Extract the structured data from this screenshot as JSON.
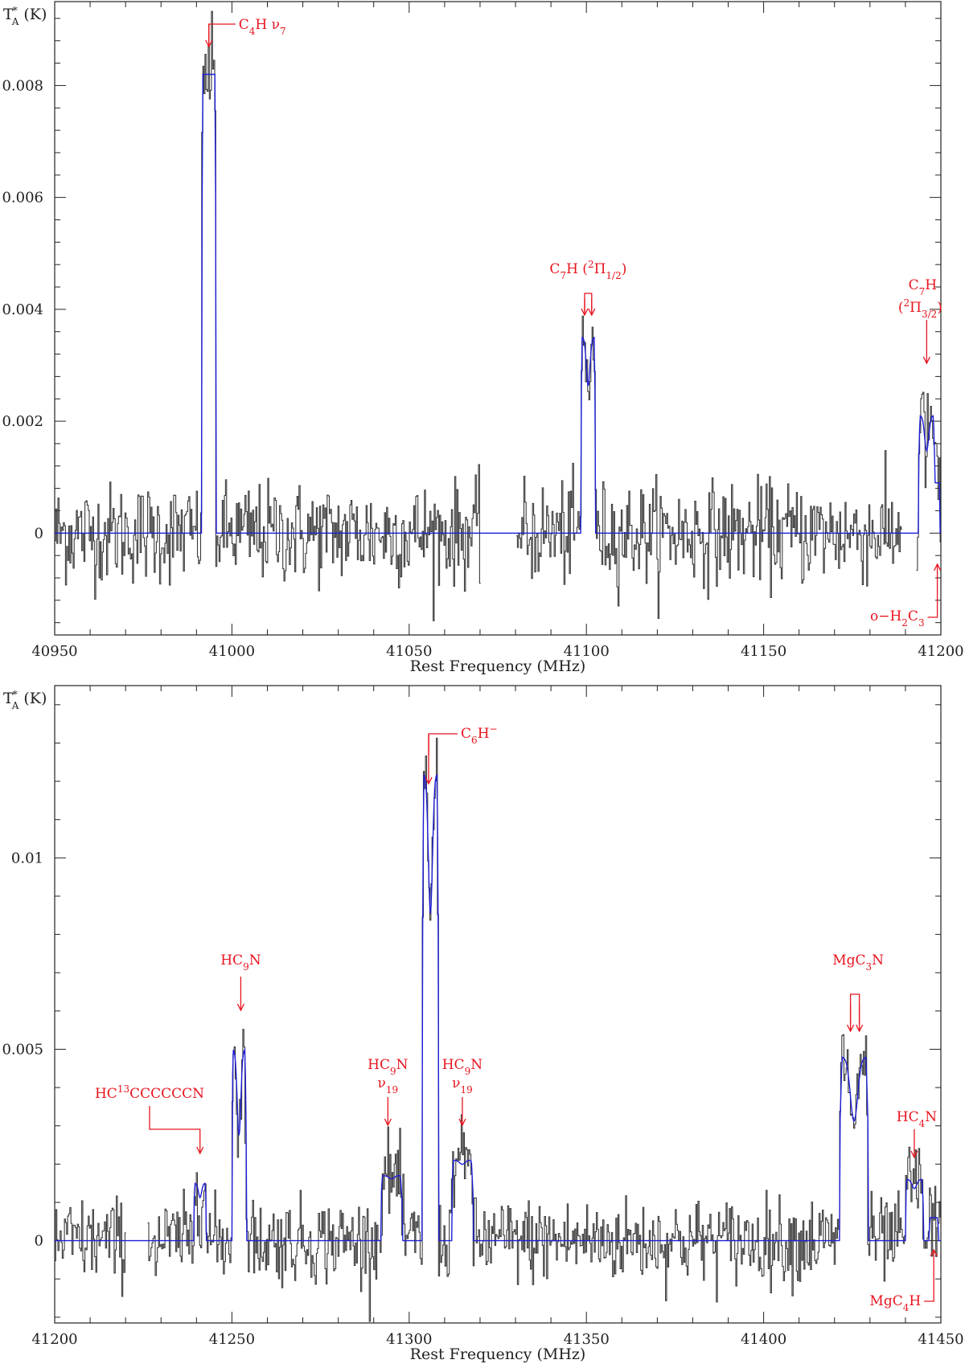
{
  "chart_data": [
    {
      "type": "line",
      "panel": "top",
      "xlabel": "Rest Frequency (MHz)",
      "ylabel": "T_A^* (K)",
      "xlim": [
        40950,
        41200
      ],
      "ylim": [
        -0.00182,
        0.0095
      ],
      "xticks": [
        40950,
        41000,
        41050,
        41100,
        41150,
        41200
      ],
      "yticks": [
        0,
        0.002,
        0.004,
        0.006,
        0.008
      ],
      "ytick_labels": [
        "0",
        "0.002",
        "0.004",
        "0.006",
        "0.008"
      ],
      "noise_rms": 0.00045,
      "gaps": [
        [
          41070,
          41080
        ],
        [
          41189,
          41193
        ]
      ],
      "fit_lines": [
        {
          "label": "C4H v7",
          "center": 40993.5,
          "width": 4,
          "peak": 0.0082,
          "dip": 0
        },
        {
          "label": "C7H (2Pi1/2)",
          "center": 41100.5,
          "width": 4,
          "peak": 0.0035,
          "dip": 0.25
        },
        {
          "label": "C7H (2Pi3/2)",
          "center": 41196,
          "width": 4.5,
          "peak": 0.0021,
          "dip": 0.3
        },
        {
          "label": "o-H2C3",
          "center": 41199,
          "width": 1.5,
          "peak": 0.0009,
          "dip": 0
        }
      ],
      "annotations": [
        {
          "id": "c4h",
          "species": "C",
          "sub": "4",
          "tail": "H ν",
          "tail_sub": "7",
          "arrow_x": [
            40993.5
          ]
        },
        {
          "id": "c7h-half",
          "species": "C",
          "sub": "7",
          "tail": "H (",
          "sup": "2",
          "tail2": "Π",
          "tail2_sub": "1/2",
          "tail3": ")",
          "arrow_x": [
            41099.5,
            41101.5
          ]
        },
        {
          "id": "c7h-3half",
          "species": "C",
          "sub": "7",
          "tail": "H",
          "line2_a": "(",
          "line2_sup": "2",
          "line2_b": "Π",
          "line2_sub": "3/2",
          "line2_c": ")",
          "arrow_x": [
            41196
          ]
        },
        {
          "id": "h2c3",
          "prefix": "o−H",
          "sub": "2",
          "tail": "C",
          "tail_sub": "3",
          "arrow_x": [
            41199
          ]
        }
      ]
    },
    {
      "type": "line",
      "panel": "bottom",
      "xlabel": "Rest Frequency (MHz)",
      "ylabel": "T_A^* (K)",
      "xlim": [
        41200,
        41450
      ],
      "ylim": [
        -0.00215,
        0.0145
      ],
      "xticks": [
        41200,
        41250,
        41300,
        41350,
        41400,
        41450
      ],
      "yticks": [
        0,
        0.005,
        0.01
      ],
      "ytick_labels": [
        "0",
        "0.005",
        "0.01"
      ],
      "noise_rms": 0.00055,
      "gaps": [
        [
          41220,
          41226
        ]
      ],
      "fit_lines": [
        {
          "label": "HC13CCCCCCCN",
          "center": 41241,
          "width": 3.5,
          "peak": 0.0015,
          "dip": 0.25
        },
        {
          "label": "HC9N",
          "center": 41252,
          "width": 4,
          "peak": 0.005,
          "dip": 0.45
        },
        {
          "label": "HC9N v19 a",
          "center": 41295,
          "width": 6,
          "peak": 0.0017,
          "dip": 0.05
        },
        {
          "label": "C6H-",
          "center": 41306,
          "width": 4.5,
          "peak": 0.0122,
          "dip": 0.3
        },
        {
          "label": "HC9N v19 b",
          "center": 41315,
          "width": 6,
          "peak": 0.0021,
          "dip": 0.05
        },
        {
          "label": "MgC3N",
          "center": 41425.5,
          "width": 8,
          "peak": 0.0048,
          "dip": 0.35
        },
        {
          "label": "HC4N",
          "center": 41442.5,
          "width": 5,
          "peak": 0.0016,
          "dip": 0.15
        },
        {
          "label": "MgC4H",
          "center": 41448,
          "width": 2.5,
          "peak": 0.0006,
          "dip": 0
        }
      ],
      "annotations": [
        {
          "id": "c6hm",
          "species": "C",
          "sub": "6",
          "tail": "H",
          "sup": "−",
          "arrow_x": [
            41305.5
          ]
        },
        {
          "id": "hc9n",
          "species": "HC",
          "sub": "9",
          "tail": "N",
          "arrow_x": [
            41252.5
          ]
        },
        {
          "id": "hc13",
          "species": "HC",
          "sup": "13",
          "tail": "CCCCCCN",
          "arrow_x": [
            41241
          ]
        },
        {
          "id": "hc9n-v19a",
          "species": "HC",
          "sub": "9",
          "tail": "N",
          "line2": "ν",
          "line2_sub": "19",
          "arrow_x": [
            41294
          ]
        },
        {
          "id": "hc9n-v19b",
          "species": "HC",
          "sub": "9",
          "tail": "N",
          "line2": "ν",
          "line2_sub": "19",
          "arrow_x": [
            41315
          ]
        },
        {
          "id": "mgc3n",
          "species": "MgC",
          "sub": "3",
          "tail": "N",
          "arrow_x": [
            41424.5,
            41427
          ]
        },
        {
          "id": "hc4n",
          "species": "HC",
          "sub": "4",
          "tail": "N",
          "arrow_x": [
            41442.5
          ]
        },
        {
          "id": "mgc4h",
          "species": "MgC",
          "sub": "4",
          "tail": "H",
          "arrow_x": [
            41448
          ]
        }
      ]
    }
  ]
}
